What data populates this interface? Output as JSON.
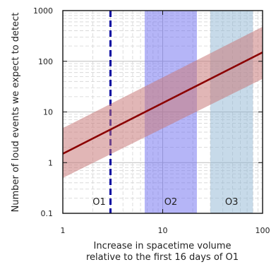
{
  "chart_data": {
    "type": "line",
    "title": "",
    "xlabel_line1": "Increase in spacetime volume",
    "xlabel_line2": "relative to the first 16 days of O1",
    "ylabel": "Number of loud events we expect to detect",
    "x_scale": "log",
    "y_scale": "log",
    "xlim": [
      1,
      100
    ],
    "ylim": [
      0.1,
      1000
    ],
    "x_ticks": [
      {
        "value": 1,
        "label": "1"
      },
      {
        "value": 10,
        "label": "10"
      },
      {
        "value": 100,
        "label": "100"
      }
    ],
    "y_ticks": [
      {
        "value": 0.1,
        "label": "0.1"
      },
      {
        "value": 1,
        "label": "1"
      },
      {
        "value": 10,
        "label": "10"
      },
      {
        "value": 100,
        "label": "100"
      },
      {
        "value": 1000,
        "label": "1000"
      }
    ],
    "grid": true,
    "series": [
      {
        "x": [
          1,
          100
        ],
        "y": [
          1.5,
          150
        ],
        "y_lower": [
          0.5,
          45
        ],
        "y_upper": [
          4.8,
          480
        ],
        "color": "#8b0000",
        "band_color": "#c97a7a"
      }
    ],
    "regions": [
      {
        "label": "O1",
        "type": "line",
        "x": 3,
        "color": "#0000a0"
      },
      {
        "label": "O2",
        "type": "span",
        "x_range": [
          6.6,
          22
        ],
        "color": "#6b6bf0"
      },
      {
        "label": "O3",
        "type": "span",
        "x_range": [
          30,
          80
        ],
        "color": "#8fb5d3"
      }
    ]
  }
}
